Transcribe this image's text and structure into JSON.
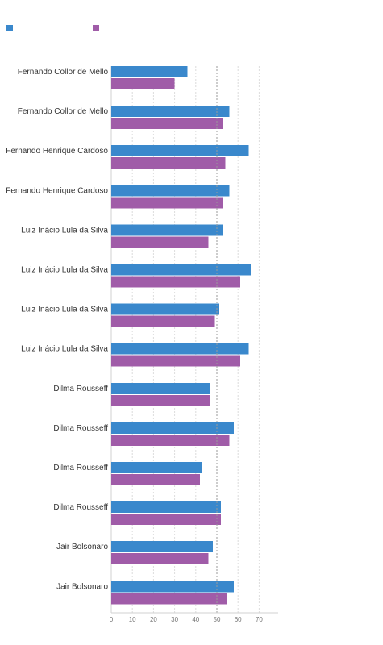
{
  "chart_data": {
    "type": "bar",
    "orientation": "horizontal",
    "title": "",
    "xlabel": "",
    "ylabel": "",
    "xlim": [
      0,
      80
    ],
    "ticks": [
      0,
      10,
      20,
      30,
      40,
      50,
      60,
      70
    ],
    "reference_line": 50,
    "grid": true,
    "legend_position": "top-left",
    "categories": [
      "Fernando Collor de Mello",
      "Fernando Collor de Mello",
      "Fernando Henrique Cardoso",
      "Fernando Henrique Cardoso",
      "Luiz Inácio Lula da Silva",
      "Luiz Inácio Lula da Silva",
      "Luiz Inácio Lula da Silva",
      "Luiz Inácio Lula da Silva",
      "Dilma Rousseff",
      "Dilma Rousseff",
      "Dilma Rousseff",
      "Dilma Rousseff",
      "Jair Bolsonaro",
      "Jair Bolsonaro"
    ],
    "series": [
      {
        "color": "#3a88cc",
        "values": [
          36,
          56,
          65,
          56,
          53,
          66,
          51,
          65,
          47,
          58,
          43,
          52,
          48,
          58
        ]
      },
      {
        "color": "#a05ca8",
        "values": [
          30,
          53,
          54,
          53,
          46,
          61,
          49,
          61,
          47,
          56,
          42,
          52,
          46,
          55
        ]
      }
    ]
  }
}
